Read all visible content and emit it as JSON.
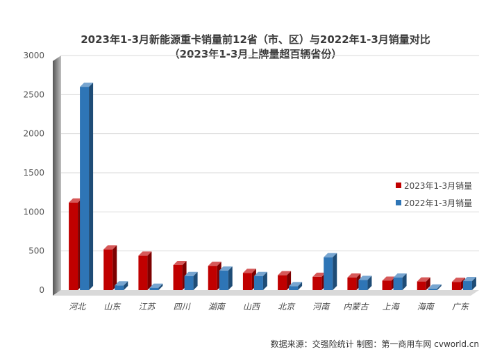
{
  "chart_data": {
    "type": "bar",
    "title": "2023年1-3月新能源重卡销量前12省（市、区）与2022年1-3月销量对比",
    "subtitle": "（2023年1-3月上牌量超百辆省份）",
    "categories": [
      "河北",
      "山东",
      "江苏",
      "四川",
      "湖南",
      "山西",
      "北京",
      "河南",
      "内蒙古",
      "上海",
      "海南",
      "广东"
    ],
    "series": [
      {
        "name": "2023年1-3月销量",
        "color": "#c00000",
        "values": [
          1120,
          520,
          440,
          320,
          310,
          220,
          190,
          170,
          160,
          120,
          110,
          105
        ]
      },
      {
        "name": "2022年1-3月销量",
        "color": "#2e75b6",
        "values": [
          2600,
          60,
          30,
          180,
          250,
          180,
          50,
          420,
          130,
          160,
          20,
          115
        ]
      }
    ],
    "yticks": [
      "0",
      "500",
      "1000",
      "1500",
      "2000",
      "2500",
      "3000"
    ],
    "ylim": [
      0,
      3000
    ],
    "grid": true,
    "legend_position": "right",
    "source": "数据来源：交强险统计 制图：第一商用车网 cvworld.cn"
  }
}
